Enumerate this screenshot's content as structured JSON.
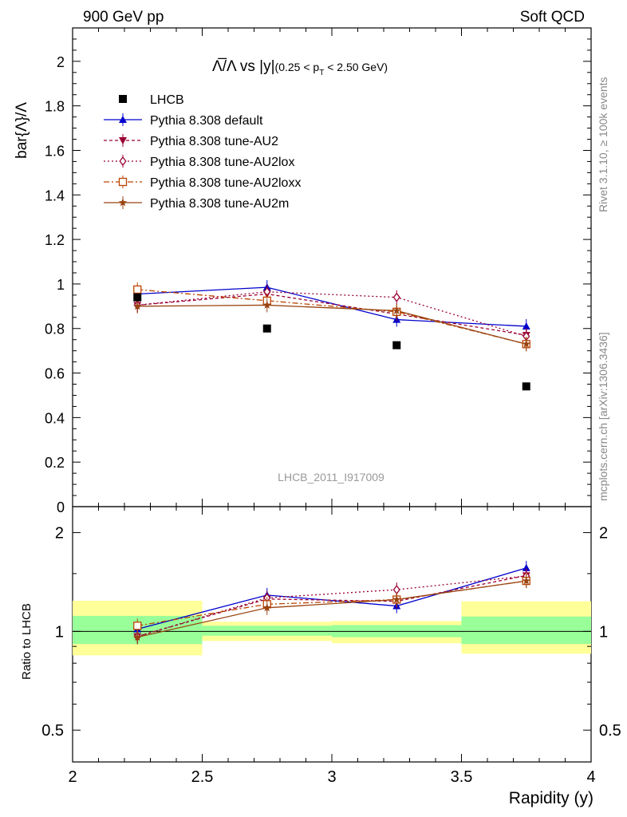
{
  "header": {
    "left": "900 GeV pp",
    "right": "Soft QCD"
  },
  "side_labels": {
    "top": "Rivet 3.1.10, ≥ 100k events",
    "bottom": "mcplots.cern.ch [arXiv:1306.3436]"
  },
  "chart_data": {
    "type": "line",
    "title_main": "Λ̅/Λ vs |y|",
    "title_sub": "(0.25 < p",
    "title_sub_index": "T",
    "title_sub_tail": " < 2.50 GeV)",
    "ylabel": "bar{Λ}/Λ",
    "ratio_ylabel": "Ratio to LHCB",
    "xlabel": "Rapidity (y)",
    "watermark": "LHCB_2011_I917009",
    "xlim": [
      2,
      4
    ],
    "ylim": [
      0,
      2.15
    ],
    "ratio_ylim": [
      0.4,
      2.4
    ],
    "x_ticks": [
      "2",
      "2.5",
      "3",
      "3.5",
      "4"
    ],
    "y_ticks": [
      "0",
      "0.2",
      "0.4",
      "0.6",
      "0.8",
      "1",
      "1.2",
      "1.4",
      "1.6",
      "1.8",
      "2"
    ],
    "ratio_ticks": [
      "0.5",
      "1",
      "2"
    ],
    "data_series": {
      "name": "LHCB",
      "x": [
        2.25,
        2.75,
        3.25,
        3.75
      ],
      "values": [
        0.94,
        0.8,
        0.725,
        0.54
      ]
    },
    "band_edges": [
      2.0,
      2.5,
      3.0,
      3.5,
      4.0
    ],
    "ratio_band_inner": [
      [
        0.915,
        1.115
      ],
      [
        0.97,
        1.04
      ],
      [
        0.96,
        1.045
      ],
      [
        0.915,
        1.11
      ]
    ],
    "ratio_band_outer": [
      [
        0.845,
        1.24
      ],
      [
        0.935,
        1.07
      ],
      [
        0.92,
        1.075
      ],
      [
        0.855,
        1.235
      ]
    ],
    "series": [
      {
        "name": "Pythia 8.308 default",
        "color": "#0000cc",
        "dash": "",
        "marker": "triangle-up",
        "x": [
          2.25,
          2.75,
          3.25,
          3.75
        ],
        "values": [
          0.955,
          0.985,
          0.84,
          0.81
        ],
        "ratio": [
          1.016,
          1.29,
          1.195,
          1.56
        ]
      },
      {
        "name": "Pythia 8.308 tune-AU2",
        "color": "#990033",
        "dash": "4,3",
        "marker": "triangle-down",
        "x": [
          2.25,
          2.75,
          3.25,
          3.75
        ],
        "values": [
          0.905,
          0.955,
          0.865,
          0.77
        ],
        "ratio": [
          0.965,
          1.255,
          1.235,
          1.48
        ]
      },
      {
        "name": "Pythia 8.308 tune-AU2lox",
        "color": "#990033",
        "dash": "2,3",
        "marker": "diamond",
        "x": [
          2.25,
          2.75,
          3.25,
          3.75
        ],
        "values": [
          0.905,
          0.965,
          0.94,
          0.765
        ],
        "ratio": [
          0.965,
          1.265,
          1.34,
          1.475
        ]
      },
      {
        "name": "Pythia 8.308 tune-AU2loxx",
        "color": "#bb4400",
        "dash": "7,3,2,3",
        "marker": "square",
        "x": [
          2.25,
          2.75,
          3.25,
          3.75
        ],
        "values": [
          0.975,
          0.925,
          0.875,
          0.73
        ],
        "ratio": [
          1.04,
          1.21,
          1.25,
          1.425
        ]
      },
      {
        "name": "Pythia 8.308 tune-AU2m",
        "color": "#994411",
        "dash": "",
        "marker": "star",
        "x": [
          2.25,
          2.75,
          3.25,
          3.75
        ],
        "values": [
          0.9,
          0.905,
          0.88,
          0.73
        ],
        "ratio": [
          0.96,
          1.18,
          1.25,
          1.425
        ]
      }
    ]
  }
}
